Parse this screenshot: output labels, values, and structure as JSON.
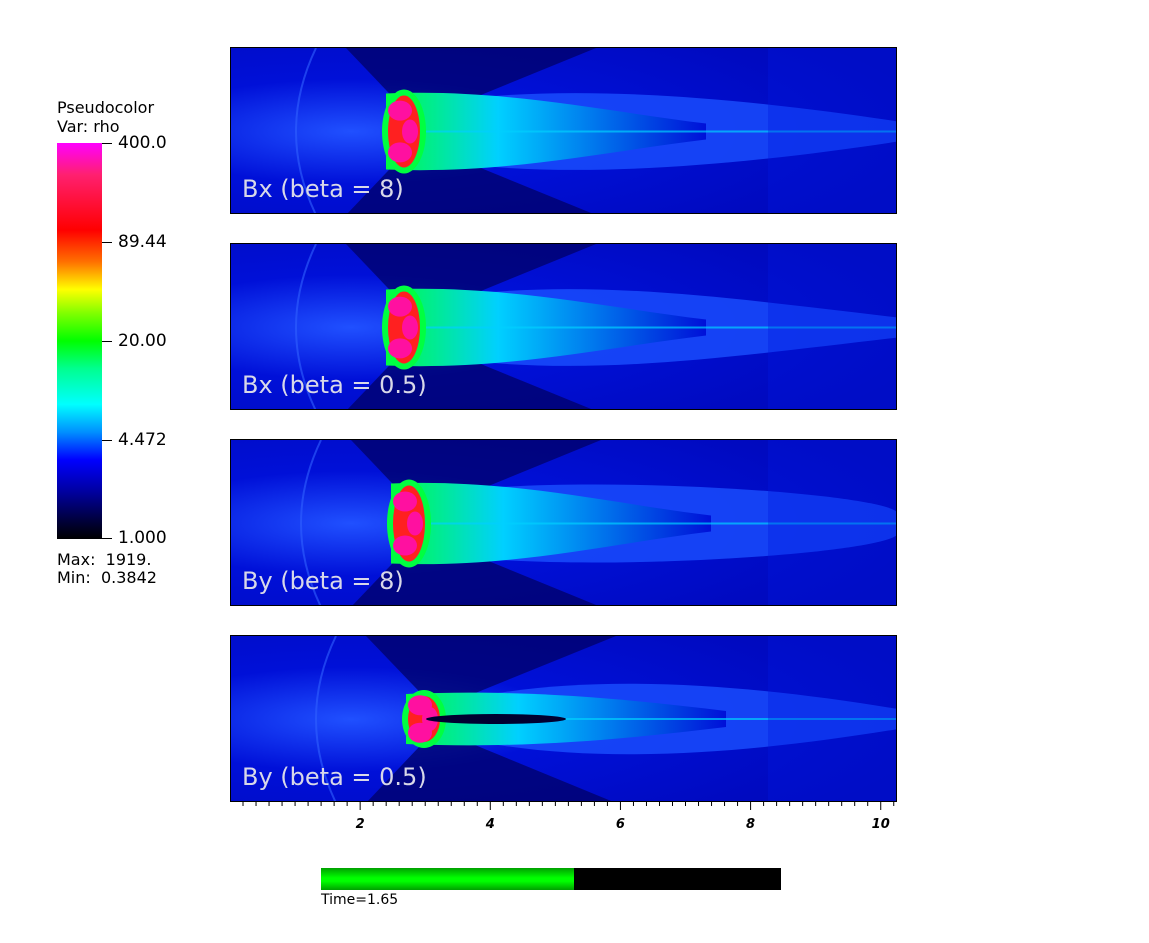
{
  "legend": {
    "title_line1": "Pseudocolor",
    "title_line2": "Var: rho",
    "ticks": [
      "400.0",
      "89.44",
      "20.00",
      "4.472",
      "1.000"
    ],
    "max": "Max:  1919.",
    "min": "Min:  0.3842"
  },
  "panels": [
    {
      "label": "Bx (beta = 8)"
    },
    {
      "label": "Bx (beta = 0.5)"
    },
    {
      "label": "By (beta = 8)"
    },
    {
      "label": "By (beta = 0.5)"
    }
  ],
  "axis": {
    "labels": [
      "2",
      "4",
      "6",
      "8",
      "10"
    ],
    "values": [
      2,
      4,
      6,
      8,
      10
    ],
    "range": [
      0,
      10.25
    ]
  },
  "time": {
    "label": "Time=1.65",
    "fraction": 0.55
  },
  "colors": {
    "background": "#0010d8",
    "bow_dark": "#000060",
    "jet_head": "#ff10a0",
    "jet_mid": "#00ff40",
    "jet_outer": "#00d0ff"
  }
}
